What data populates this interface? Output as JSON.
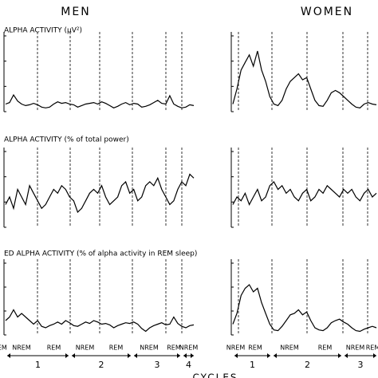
{
  "headings": {
    "men": "MEN",
    "women": "WOMEN"
  },
  "chart_data": [
    {
      "type": "line",
      "title": "ALPHA ACTIVITY (μV²)",
      "ylim": [
        0,
        10
      ],
      "color": "#000000",
      "values": [
        1,
        1.2,
        2.2,
        1.4,
        1,
        0.8,
        0.9,
        1.1,
        0.9,
        0.6,
        0.5,
        0.6,
        1,
        1.3,
        1.1,
        1.2,
        1,
        0.9,
        0.6,
        0.8,
        1,
        1.1,
        1.2,
        1,
        1.3,
        1.1,
        0.8,
        0.5,
        0.7,
        1,
        1.2,
        0.9,
        1.1,
        1,
        0.6,
        0.7,
        0.9,
        1.2,
        1.5,
        1.1,
        1,
        2.1,
        1,
        0.7,
        0.5,
        0.6,
        0.9,
        0.8
      ]
    },
    {
      "type": "line",
      "ylim": [
        0,
        10
      ],
      "color": "#000000",
      "values": [
        1,
        3,
        5.5,
        6.5,
        7.5,
        6,
        8,
        5.5,
        4,
        2,
        1,
        0.8,
        1.5,
        3,
        4,
        4.5,
        5,
        4.2,
        4.5,
        3,
        1.5,
        0.8,
        0.7,
        1.5,
        2.5,
        2.8,
        2.5,
        2,
        1.5,
        1,
        0.6,
        0.5,
        1,
        1.2,
        1,
        0.9
      ]
    },
    {
      "type": "line",
      "title": "ALPHA ACTIVITY (% of total power)",
      "ylim": [
        0,
        10
      ],
      "color": "#000000",
      "values": [
        3,
        4,
        2.5,
        5,
        4,
        3,
        5.5,
        4.5,
        3.5,
        2.5,
        3,
        4,
        5,
        4.5,
        5.5,
        5,
        4,
        3.5,
        2,
        2.5,
        3.5,
        4.5,
        5,
        4.5,
        5.5,
        4,
        3,
        3.5,
        4,
        5.5,
        6,
        4.5,
        5,
        3.5,
        4,
        5.5,
        6,
        5.5,
        6.5,
        5,
        4,
        3,
        3.5,
        5,
        6,
        5.5,
        7,
        6.5
      ]
    },
    {
      "type": "line",
      "ylim": [
        0,
        10
      ],
      "color": "#000000",
      "values": [
        3,
        4,
        3.5,
        4.5,
        3,
        4,
        5,
        3.5,
        4,
        5.5,
        6,
        5,
        5.5,
        4.5,
        5,
        4,
        3.5,
        4.5,
        5,
        3.5,
        4,
        5,
        4.5,
        5.5,
        5,
        4.5,
        4,
        5,
        4.5,
        5,
        4,
        3.5,
        4.5,
        5,
        4,
        4.5
      ]
    },
    {
      "type": "line",
      "title": "ED ALPHA ACTIVITY (% of alpha activity in REM sleep)",
      "ylim": [
        0,
        10
      ],
      "color": "#000000",
      "values": [
        2,
        2.5,
        3.5,
        2.5,
        3,
        2.5,
        2,
        1.5,
        2,
        1.2,
        1,
        1.3,
        1.5,
        1.8,
        1.5,
        2,
        1.7,
        1.3,
        1.2,
        1.5,
        1.8,
        1.6,
        2,
        1.8,
        1.5,
        1.6,
        1.4,
        1,
        1.3,
        1.5,
        1.7,
        1.6,
        1.8,
        1.5,
        0.9,
        0.5,
        1,
        1.3,
        1.5,
        1.7,
        1.4,
        1.5,
        2.5,
        1.6,
        1.2,
        1,
        1.3,
        1.4
      ]
    },
    {
      "type": "line",
      "ylim": [
        0,
        10
      ],
      "color": "#000000",
      "values": [
        1.5,
        3,
        5.5,
        6.5,
        7,
        6,
        6.5,
        4.5,
        3,
        1.5,
        0.7,
        0.6,
        1.2,
        2,
        2.8,
        3,
        3.5,
        2.8,
        3.2,
        2,
        1,
        0.7,
        0.6,
        1,
        1.7,
        2,
        2.2,
        1.8,
        1.5,
        1,
        0.6,
        0.5,
        0.8,
        1,
        1.2,
        1
      ]
    }
  ],
  "cycles": {
    "men": {
      "phases": [
        "NREM",
        "REM",
        "NREM",
        "REM",
        "NREM",
        "REM",
        "NREM",
        "REM"
      ],
      "numbers": [
        "1",
        "2",
        "3",
        "4"
      ]
    },
    "women": {
      "phases": [
        "NREM",
        "REM",
        "NREM",
        "REM",
        "NREM",
        "REM"
      ],
      "numbers": [
        "1",
        "2",
        "3"
      ]
    },
    "label": "CYCLES"
  }
}
